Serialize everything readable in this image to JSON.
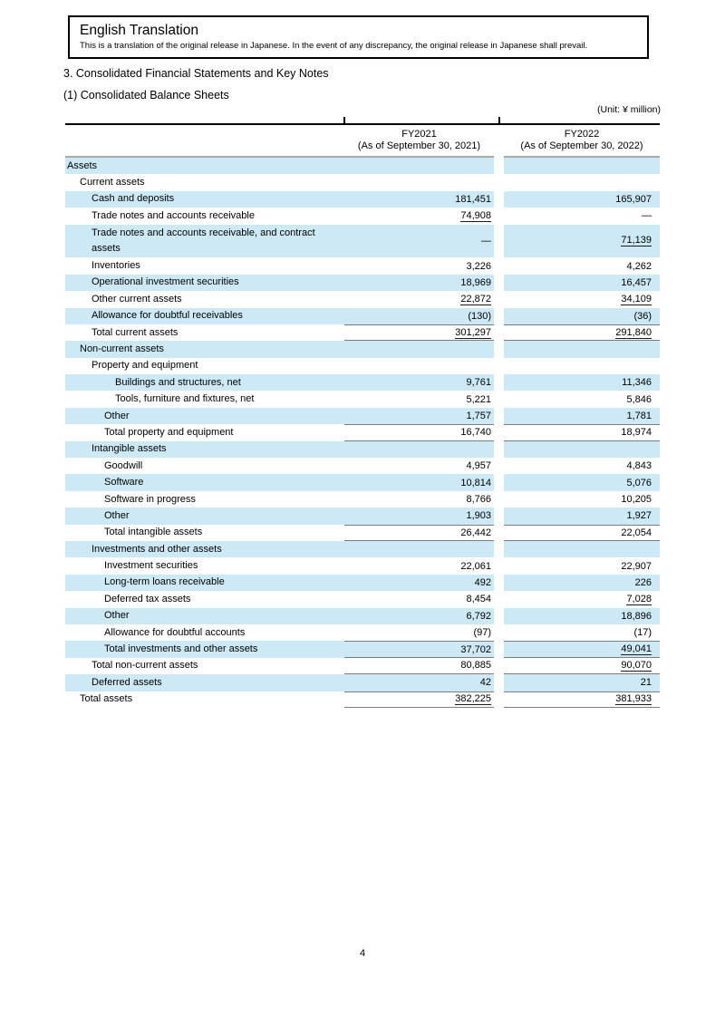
{
  "header_box": {
    "title": "English Translation",
    "note": "This is a translation of the original release in Japanese. In the event of any discrepancy, the original release in Japanese shall prevail."
  },
  "headings": {
    "section": "3. Consolidated Financial Statements and Key Notes",
    "subsection": "(1) Consolidated Balance Sheets"
  },
  "table": {
    "unit_label": "(Unit: ¥ million)",
    "columns": [
      {
        "line1": "FY2021",
        "line2": "(As of September 30, 2021)"
      },
      {
        "line1": "FY2022",
        "line2": "(As of September 30, 2022)"
      }
    ],
    "rows": [
      {
        "label": "Assets",
        "indent": 0,
        "v1": "",
        "v2": "",
        "shaded": true
      },
      {
        "label": "Current assets",
        "indent": 1,
        "v1": "",
        "v2": ""
      },
      {
        "label": "Cash and deposits",
        "indent": 2,
        "v1": "181,451",
        "v2": "165,907",
        "shaded": true
      },
      {
        "label": "Trade notes and accounts receivable",
        "indent": 2,
        "v1": "74,908",
        "u1": true,
        "v2": "—"
      },
      {
        "label": "Trade notes and accounts receivable, and contract assets",
        "indent": 2,
        "v1": "—",
        "v2": "71,139",
        "u2": true,
        "shaded": true,
        "tall": true
      },
      {
        "label": "Inventories",
        "indent": 2,
        "v1": "3,226",
        "v2": "4,262"
      },
      {
        "label": "Operational investment securities",
        "indent": 2,
        "v1": "18,969",
        "v2": "16,457",
        "shaded": true
      },
      {
        "label": "Other current assets",
        "indent": 2,
        "v1": "22,872",
        "u1": true,
        "v2": "34,109",
        "u2": true
      },
      {
        "label": "Allowance for doubtful receivables",
        "indent": 2,
        "v1": "(130)",
        "v2": "(36)",
        "shaded": true
      },
      {
        "label": "Total current assets",
        "indent": 2,
        "v1": "301,297",
        "u1": true,
        "v2": "291,840",
        "u2": true,
        "rule_top": true,
        "rule_bottom": true
      },
      {
        "label": "Non-current assets",
        "indent": 1,
        "v1": "",
        "v2": "",
        "shaded": true
      },
      {
        "label": "Property and equipment",
        "indent": 2,
        "v1": "",
        "v2": ""
      },
      {
        "label": "Buildings and structures, net",
        "indent": 4,
        "v1": "9,761",
        "v2": "11,346",
        "shaded": true
      },
      {
        "label": "Tools, furniture and fixtures, net",
        "indent": 4,
        "v1": "5,221",
        "v2": "5,846"
      },
      {
        "label": "Other",
        "indent": 3,
        "v1": "1,757",
        "v2": "1,781",
        "shaded": true
      },
      {
        "label": "Total property and equipment",
        "indent": 3,
        "v1": "16,740",
        "v2": "18,974",
        "rule_top": true,
        "rule_bottom": true
      },
      {
        "label": "Intangible assets",
        "indent": 2,
        "v1": "",
        "v2": "",
        "shaded": true
      },
      {
        "label": "Goodwill",
        "indent": 3,
        "v1": "4,957",
        "v2": "4,843"
      },
      {
        "label": "Software",
        "indent": 3,
        "v1": "10,814",
        "v2": "5,076",
        "shaded": true
      },
      {
        "label": "Software in progress",
        "indent": 3,
        "v1": "8,766",
        "v2": "10,205"
      },
      {
        "label": "Other",
        "indent": 3,
        "v1": "1,903",
        "v2": "1,927",
        "shaded": true
      },
      {
        "label": "Total intangible assets",
        "indent": 3,
        "v1": "26,442",
        "v2": "22,054",
        "rule_top": true,
        "rule_bottom": true
      },
      {
        "label": "Investments and other assets",
        "indent": 2,
        "v1": "",
        "v2": "",
        "shaded": true
      },
      {
        "label": "Investment securities",
        "indent": 3,
        "v1": "22,061",
        "v2": "22,907"
      },
      {
        "label": "Long-term loans receivable",
        "indent": 3,
        "v1": "492",
        "v2": "226",
        "shaded": true
      },
      {
        "label": "Deferred tax assets",
        "indent": 3,
        "v1": "8,454",
        "v2": "7,028",
        "u2": true
      },
      {
        "label": "Other",
        "indent": 3,
        "v1": "6,792",
        "v2": "18,896",
        "shaded": true
      },
      {
        "label": "Allowance for doubtful accounts",
        "indent": 3,
        "v1": "(97)",
        "v2": "(17)"
      },
      {
        "label": "Total investments and other assets",
        "indent": 3,
        "v1": "37,702",
        "v2": "49,041",
        "u2": true,
        "shaded": true,
        "rule_top": true,
        "rule_bottom": true
      },
      {
        "label": "Total non-current assets",
        "indent": 2,
        "v1": "80,885",
        "v2": "90,070",
        "u2": true,
        "rule_bottom": true
      },
      {
        "label": "Deferred assets",
        "indent": 2,
        "v1": "42",
        "v2": "21",
        "shaded": true
      },
      {
        "label": "Total assets",
        "indent": 1,
        "v1": "382,225",
        "u1": true,
        "v2": "381,933",
        "u2": true,
        "rule_top": true,
        "rule_bottom": true
      }
    ]
  },
  "footer": {
    "page_number": "4"
  },
  "colors": {
    "row_shade": "#cde9f6",
    "total_rule": "#7d7d7d",
    "header_rule": "#a9a9a9",
    "top_rule": "#000000",
    "text": "#000000"
  }
}
